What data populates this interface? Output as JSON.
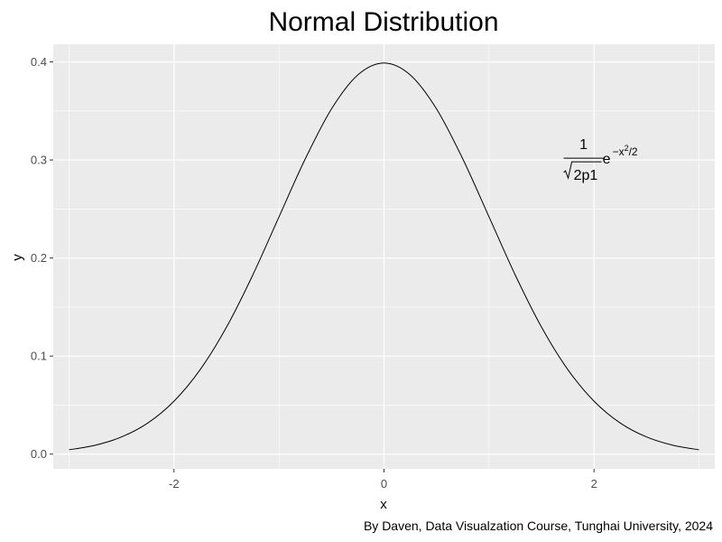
{
  "chart_data": {
    "type": "line",
    "title": "Normal Distribution",
    "xlabel": "x",
    "ylabel": "y",
    "caption": "By Daven, Data Visualzation Course, Tunghai University, 2024",
    "xlim": [
      -3.15,
      3.15
    ],
    "ylim": [
      -0.015,
      0.418
    ],
    "x_ticks": [
      -2,
      0,
      2
    ],
    "y_ticks": [
      0.0,
      0.1,
      0.2,
      0.3,
      0.4
    ],
    "x_tick_labels": [
      "-2",
      "0",
      "2"
    ],
    "y_tick_labels": [
      "0.0",
      "0.1",
      "0.2",
      "0.3",
      "0.4"
    ],
    "grid": true,
    "legend": "none",
    "background_color": "#ebebeb",
    "grid_color": "#ffffff",
    "line_color": "#000000",
    "series": [
      {
        "x": [
          -3.0,
          -2.75,
          -2.5,
          -2.25,
          -2.0,
          -1.75,
          -1.5,
          -1.25,
          -1.0,
          -0.75,
          -0.5,
          -0.25,
          0.0,
          0.25,
          0.5,
          0.75,
          1.0,
          1.25,
          1.5,
          1.75,
          2.0,
          2.25,
          2.5,
          2.75,
          3.0
        ],
        "y": [
          0.0044,
          0.0091,
          0.0175,
          0.0317,
          0.054,
          0.0863,
          0.1295,
          0.1826,
          0.242,
          0.3011,
          0.3521,
          0.3867,
          0.3989,
          0.3867,
          0.3521,
          0.3011,
          0.242,
          0.1826,
          0.1295,
          0.0863,
          0.054,
          0.0317,
          0.0175,
          0.0091,
          0.0044
        ]
      }
    ],
    "annotations": [
      {
        "x": 1.9,
        "y": 0.3,
        "numerator": "1",
        "radicand": "2p1",
        "base": "e",
        "exp_sign": "−",
        "exp_var": "x",
        "exp_power": "2",
        "exp_rest": "/2"
      }
    ]
  }
}
